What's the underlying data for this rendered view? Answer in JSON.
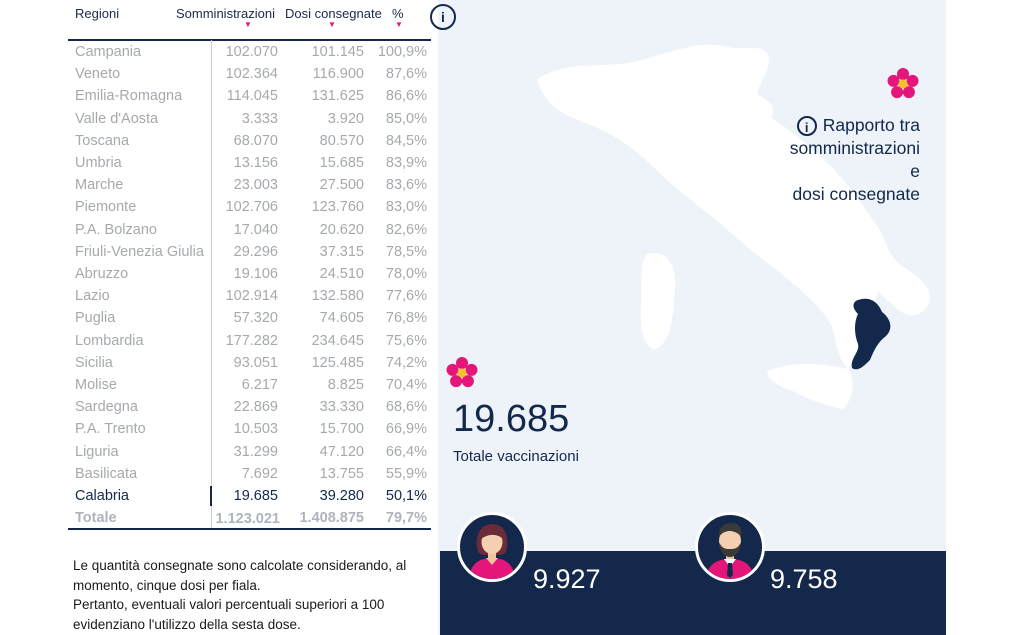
{
  "table": {
    "headers": {
      "region": "Regioni",
      "administrations": "Somministrazioni",
      "delivered": "Dosi consegnate",
      "percent": "%"
    },
    "sort_indicator": "▼",
    "info_icon": "i",
    "rows": [
      {
        "region": "Campania",
        "administrations": "102.070",
        "delivered": "101.145",
        "percent": "100,9%"
      },
      {
        "region": "Veneto",
        "administrations": "102.364",
        "delivered": "116.900",
        "percent": "87,6%"
      },
      {
        "region": "Emilia-Romagna",
        "administrations": "114.045",
        "delivered": "131.625",
        "percent": "86,6%"
      },
      {
        "region": "Valle d'Aosta",
        "administrations": "3.333",
        "delivered": "3.920",
        "percent": "85,0%"
      },
      {
        "region": "Toscana",
        "administrations": "68.070",
        "delivered": "80.570",
        "percent": "84,5%"
      },
      {
        "region": "Umbria",
        "administrations": "13.156",
        "delivered": "15.685",
        "percent": "83,9%"
      },
      {
        "region": "Marche",
        "administrations": "23.003",
        "delivered": "27.500",
        "percent": "83,6%"
      },
      {
        "region": "Piemonte",
        "administrations": "102.706",
        "delivered": "123.760",
        "percent": "83,0%"
      },
      {
        "region": "P.A. Bolzano",
        "administrations": "17.040",
        "delivered": "20.620",
        "percent": "82,6%"
      },
      {
        "region": "Friuli-Venezia Giulia",
        "administrations": "29.296",
        "delivered": "37.315",
        "percent": "78,5%"
      },
      {
        "region": "Abruzzo",
        "administrations": "19.106",
        "delivered": "24.510",
        "percent": "78,0%"
      },
      {
        "region": "Lazio",
        "administrations": "102.914",
        "delivered": "132.580",
        "percent": "77,6%"
      },
      {
        "region": "Puglia",
        "administrations": "57.320",
        "delivered": "74.605",
        "percent": "76,8%"
      },
      {
        "region": "Lombardia",
        "administrations": "177.282",
        "delivered": "234.645",
        "percent": "75,6%"
      },
      {
        "region": "Sicilia",
        "administrations": "93.051",
        "delivered": "125.485",
        "percent": "74,2%"
      },
      {
        "region": "Molise",
        "administrations": "6.217",
        "delivered": "8.825",
        "percent": "70,4%"
      },
      {
        "region": "Sardegna",
        "administrations": "22.869",
        "delivered": "33.330",
        "percent": "68,6%"
      },
      {
        "region": "P.A. Trento",
        "administrations": "10.503",
        "delivered": "15.700",
        "percent": "66,9%"
      },
      {
        "region": "Liguria",
        "administrations": "31.299",
        "delivered": "47.120",
        "percent": "66,4%"
      },
      {
        "region": "Basilicata",
        "administrations": "7.692",
        "delivered": "13.755",
        "percent": "55,9%"
      },
      {
        "region": "Calabria",
        "administrations": "19.685",
        "delivered": "39.280",
        "percent": "50,1%",
        "selected": true
      },
      {
        "region": "Totale",
        "administrations": "1.123.021",
        "delivered": "1.408.875",
        "percent": "79,7%",
        "total": true
      }
    ]
  },
  "note": {
    "lines": [
      "Le quantità consegnate sono calcolate considerando, al",
      "momento, cinque dosi per fiala.",
      "Pertanto, eventuali valori percentuali superiori a 100",
      "evidenziano l'utilizzo della sesta dose."
    ]
  },
  "info_panel": {
    "icon": "i",
    "lines": [
      "Rapporto tra",
      "somministrazioni e",
      "dosi consegnate"
    ]
  },
  "selected_region": {
    "name": "Calabria",
    "total_vaccinations": "19.685",
    "total_label": "Totale vaccinazioni",
    "female_count": "9.927",
    "male_count": "9.758"
  },
  "colors": {
    "navy": "#13284b",
    "accent_pink": "#e4167a",
    "background": "#eef2f9",
    "muted_text": "#a5a9af"
  },
  "icons": [
    "info-icon",
    "flower-icon",
    "female-avatar-icon",
    "male-avatar-icon",
    "sort-arrow-icon"
  ]
}
